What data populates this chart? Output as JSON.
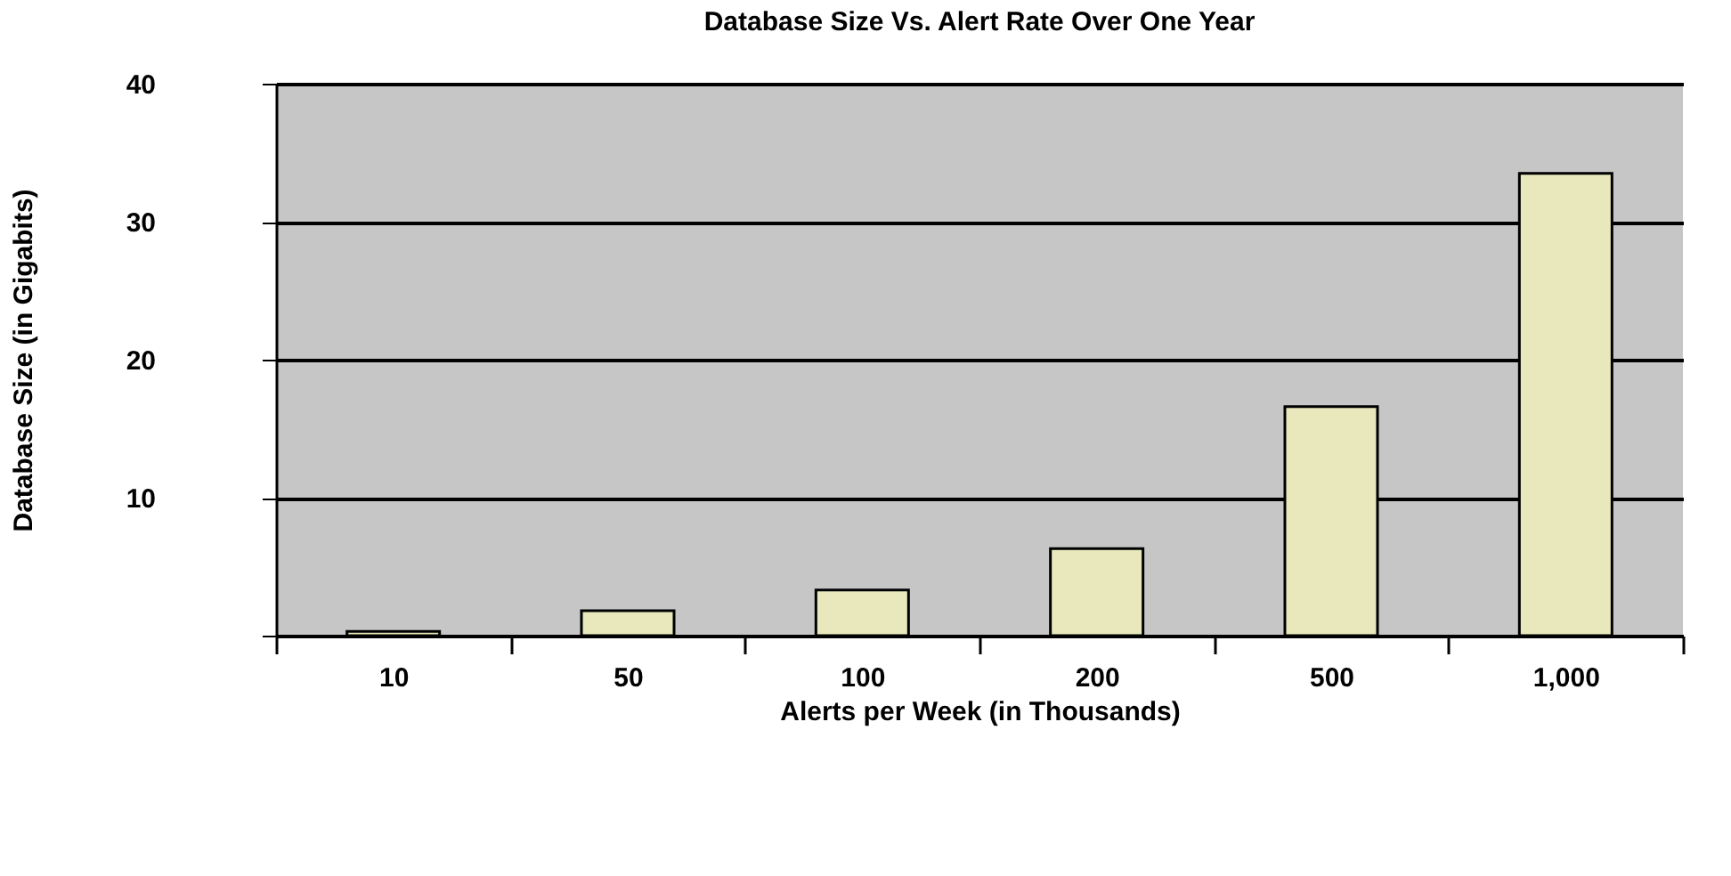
{
  "chart_data": {
    "type": "bar",
    "title": "Database Size Vs. Alert Rate Over One Year",
    "xlabel": "Alerts per Week (in Thousands)",
    "ylabel": "Database Size (in Gigabits)",
    "categories": [
      "10",
      "50",
      "100",
      "200",
      "500",
      "1,000"
    ],
    "values": [
      0.3,
      1.8,
      3.3,
      6.3,
      16.6,
      33.5
    ],
    "color": "#e8e8bc",
    "ylim": [
      0,
      40
    ],
    "yticks": [
      {
        "value": 0,
        "label": null
      },
      10,
      20,
      30,
      40
    ],
    "grid": "y"
  }
}
